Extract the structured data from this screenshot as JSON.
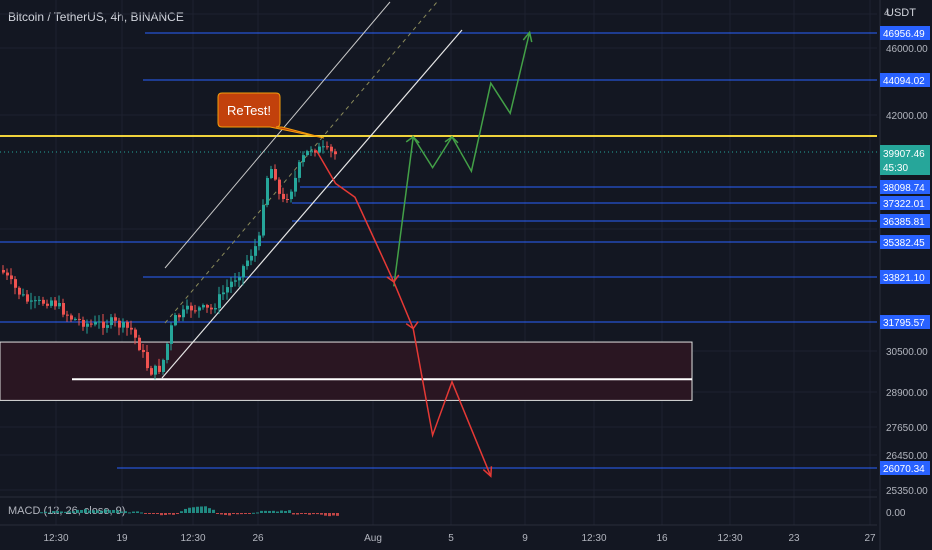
{
  "header": {
    "title": "Bitcoin / TetherUS, 4h, BINANCE",
    "currency": "USDT"
  },
  "callout": {
    "text": "ReTest!"
  },
  "macd": {
    "label": "MACD (12, 26, close, 9)"
  },
  "price_axis": {
    "ticks": [
      "46000.00",
      "42000.00",
      "30500.00",
      "28900.00",
      "27650.00",
      "26450.00",
      "25350.00",
      "0.00"
    ],
    "top_partial": "4"
  },
  "time_axis": {
    "ticks": [
      "12:30",
      "19",
      "12:30",
      "26",
      "Aug",
      "5",
      "9",
      "12:30",
      "16",
      "12:30",
      "23",
      "27"
    ]
  },
  "chart_data": {
    "type": "candlestick",
    "title": "Bitcoin / TetherUS, 4h, BINANCE",
    "last_price": {
      "label": "39907.46",
      "countdown": "45:30",
      "color": "#26a69a"
    },
    "resistance": {
      "value": 41000,
      "color": "#f0d33c"
    },
    "horizontal_levels": [
      {
        "value": 46956.49,
        "label": "46956.49"
      },
      {
        "value": 44094.02,
        "label": "44094.02"
      },
      {
        "value": 38098.74,
        "label": "38098.74"
      },
      {
        "value": 37322.01,
        "label": "37322.01"
      },
      {
        "value": 36385.81,
        "label": "36385.81"
      },
      {
        "value": 35382.45,
        "label": "35382.45"
      },
      {
        "value": 33821.1,
        "label": "33821.10"
      },
      {
        "value": 31795.57,
        "label": "31795.57"
      },
      {
        "value": 26070.34,
        "label": "26070.34"
      }
    ],
    "level_color": "#2962ff",
    "support_zone": {
      "top": 30900,
      "bottom": 28600,
      "midline": 29400
    },
    "colors": {
      "up": "#26a69a",
      "down": "#ef5350",
      "bull_path": "#43a047",
      "bear_path": "#e53935",
      "callout": "#c2410c"
    },
    "projection_bull": [
      {
        "date": "Aug 2",
        "price": 33400
      },
      {
        "date": "Aug 3",
        "price": 40950
      },
      {
        "date": "Aug 4",
        "price": 39200
      },
      {
        "date": "Aug 5",
        "price": 40950
      },
      {
        "date": "Aug 6",
        "price": 39000
      },
      {
        "date": "Aug 7",
        "price": 43900
      },
      {
        "date": "Aug 8",
        "price": 42100
      },
      {
        "date": "Aug 9",
        "price": 47000
      }
    ],
    "projection_bear": [
      {
        "date": "Jul 29",
        "price": 40200
      },
      {
        "date": "Jul 30",
        "price": 38300
      },
      {
        "date": "Jul 31",
        "price": 37600
      },
      {
        "date": "Aug 1",
        "price": 35500
      },
      {
        "date": "Aug 2",
        "price": 33600
      },
      {
        "date": "Aug 3",
        "price": 31500
      },
      {
        "date": "Aug 4",
        "price": 27300
      },
      {
        "date": "Aug 5",
        "price": 29300
      },
      {
        "date": "Aug 7",
        "price": 25800
      }
    ]
  }
}
